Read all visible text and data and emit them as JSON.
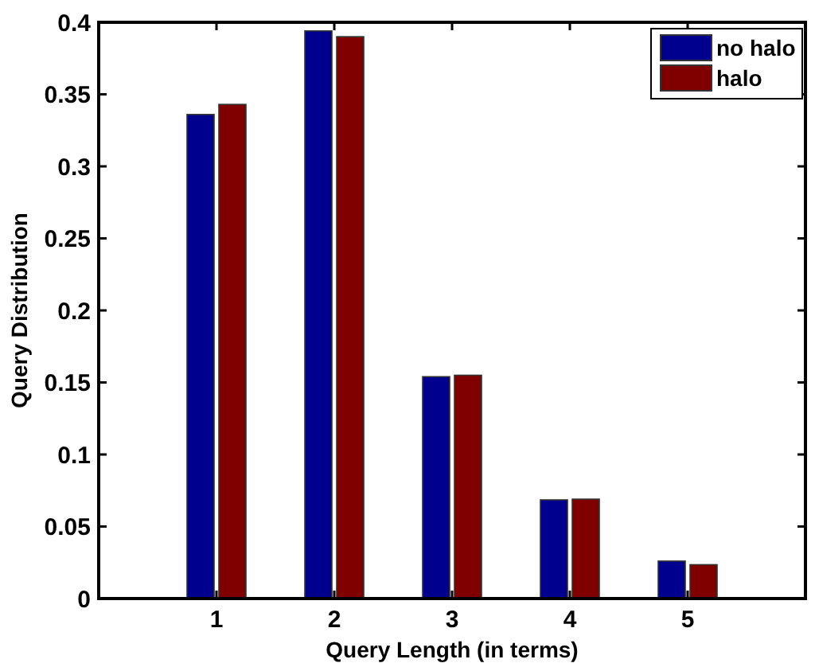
{
  "chart_data": {
    "type": "bar",
    "xlabel": "Query Length (in terms)",
    "ylabel": "Query Distribution",
    "x": [
      1,
      2,
      3,
      4,
      5
    ],
    "xlim": [
      0,
      6
    ],
    "xticks": [
      1,
      2,
      3,
      4,
      5
    ],
    "ylim": [
      0,
      0.4
    ],
    "yticks": [
      0,
      0.05,
      0.1,
      0.15,
      0.2,
      0.25,
      0.3,
      0.35,
      0.4
    ],
    "series": [
      {
        "name": "no halo",
        "color": "#00008f",
        "values": [
          0.336,
          0.394,
          0.154,
          0.0685,
          0.026
        ]
      },
      {
        "name": "halo",
        "color": "#800000",
        "values": [
          0.343,
          0.39,
          0.155,
          0.069,
          0.0235
        ]
      }
    ],
    "legend": "top right",
    "grid": false
  }
}
